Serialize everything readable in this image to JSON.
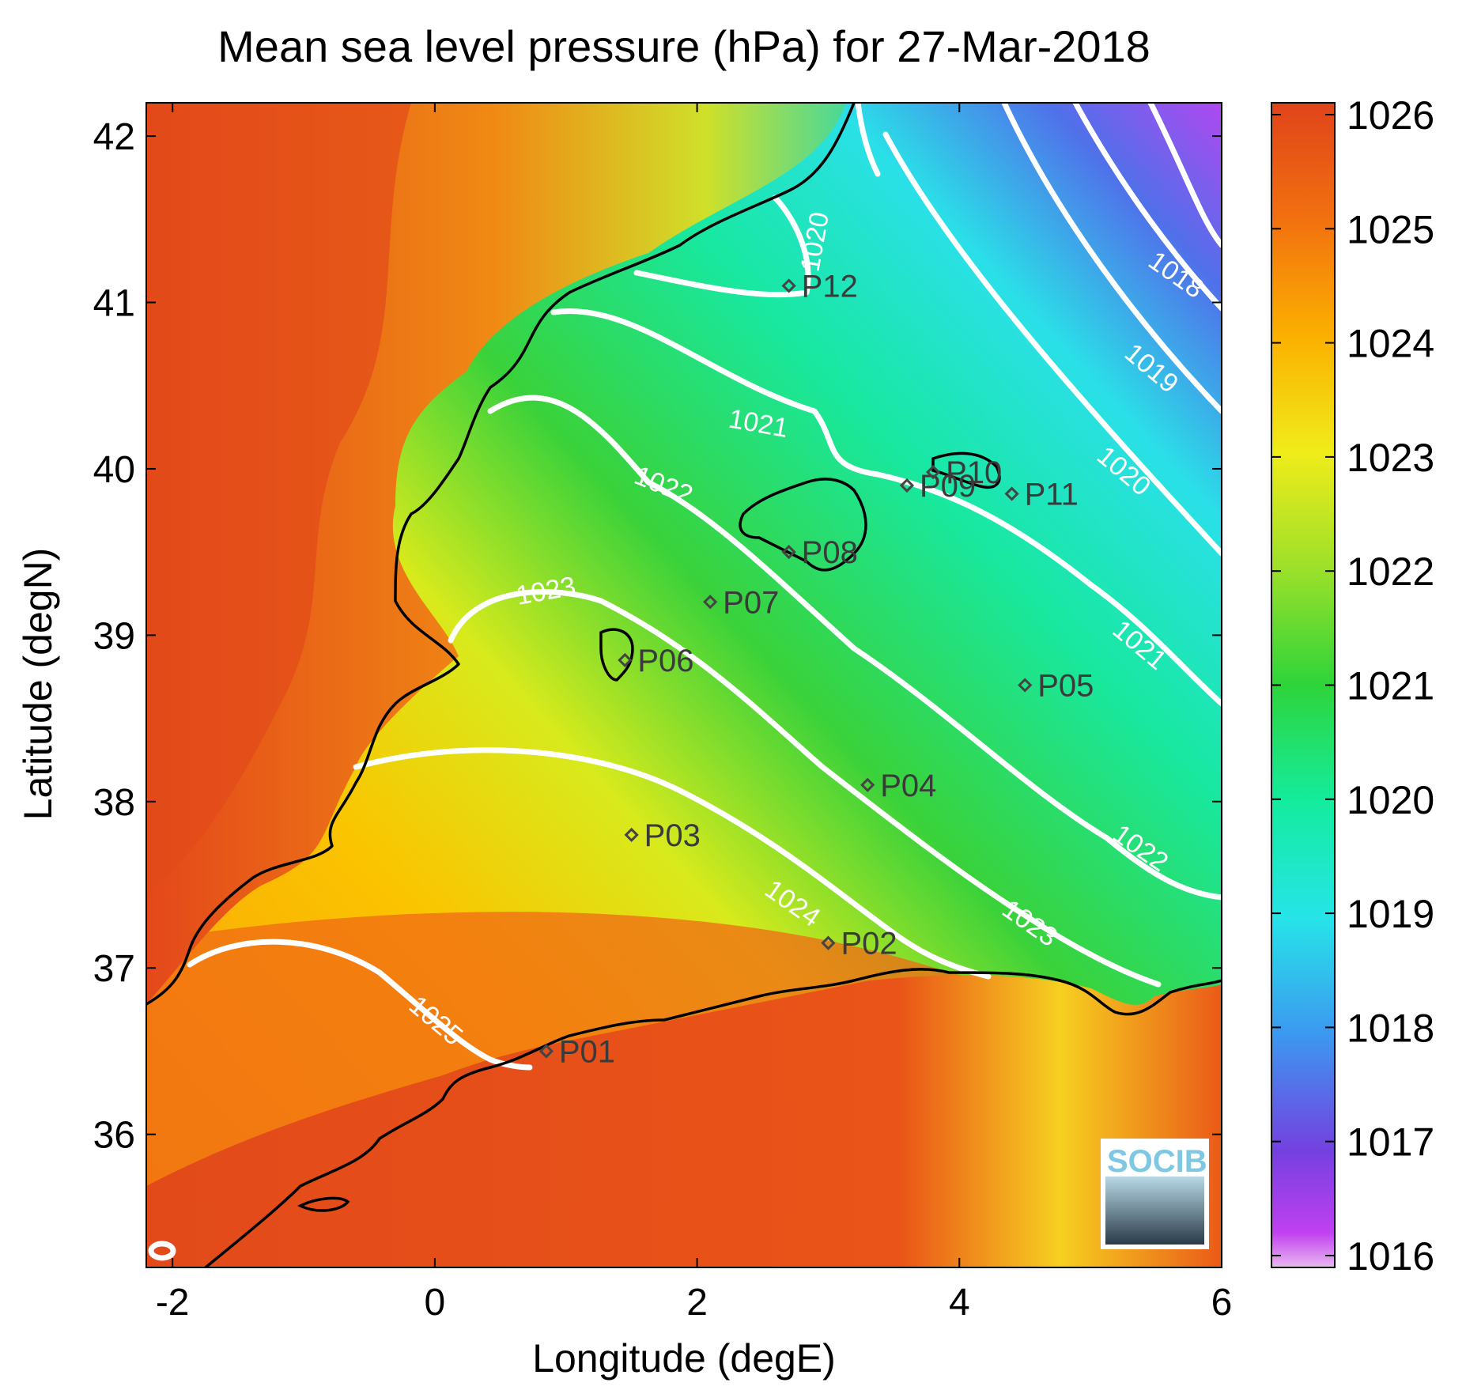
{
  "title": "Mean sea level pressure (hPa) for 27-Mar-2018",
  "xlabel": "Longitude (degE)",
  "ylabel": "Latitude (degN)",
  "x_ticks": [
    "-2",
    "0",
    "2",
    "4",
    "6"
  ],
  "y_ticks": [
    "42",
    "41",
    "40",
    "39",
    "38",
    "37",
    "36"
  ],
  "colorbar_ticks": [
    "1026",
    "1025",
    "1024",
    "1023",
    "1022",
    "1021",
    "1020",
    "1019",
    "1018",
    "1017",
    "1016"
  ],
  "contour_labels": [
    "1018",
    "1019",
    "1020",
    "1020",
    "1021",
    "1021",
    "1022",
    "1022",
    "1023",
    "1023",
    "1024",
    "1025"
  ],
  "stations": [
    {
      "name": "P01",
      "lon": 0.85,
      "lat": 36.5
    },
    {
      "name": "P02",
      "lon": 3.0,
      "lat": 37.15
    },
    {
      "name": "P03",
      "lon": 1.5,
      "lat": 37.8
    },
    {
      "name": "P04",
      "lon": 3.3,
      "lat": 38.1
    },
    {
      "name": "P05",
      "lon": 4.5,
      "lat": 38.7
    },
    {
      "name": "P06",
      "lon": 1.45,
      "lat": 38.85
    },
    {
      "name": "P07",
      "lon": 2.1,
      "lat": 39.2
    },
    {
      "name": "P08",
      "lon": 2.7,
      "lat": 39.5
    },
    {
      "name": "P09",
      "lon": 3.6,
      "lat": 39.9
    },
    {
      "name": "P10",
      "lon": 3.8,
      "lat": 39.98
    },
    {
      "name": "P11",
      "lon": 4.4,
      "lat": 39.85
    },
    {
      "name": "P12",
      "lon": 2.7,
      "lat": 41.1
    }
  ],
  "logo": "SOCIB",
  "colormap": [
    "#e44a1c",
    "#f47d10",
    "#fbb400",
    "#f4ec1a",
    "#a8e02a",
    "#2fd23a",
    "#12e89a",
    "#22e2e2",
    "#3aa0f0",
    "#6a44e4",
    "#b640f0",
    "#e8b0f0"
  ],
  "chart_data": {
    "type": "heatmap",
    "title": "Mean sea level pressure (hPa) for 27-Mar-2018",
    "xlabel": "Longitude (degE)",
    "ylabel": "Latitude (degN)",
    "xlim": [
      -2.2,
      6.0
    ],
    "ylim": [
      35.2,
      42.2
    ],
    "colorbar_range": [
      1016,
      1026
    ],
    "contour_levels": [
      1018,
      1019,
      1020,
      1021,
      1022,
      1023,
      1024,
      1025
    ]
  }
}
